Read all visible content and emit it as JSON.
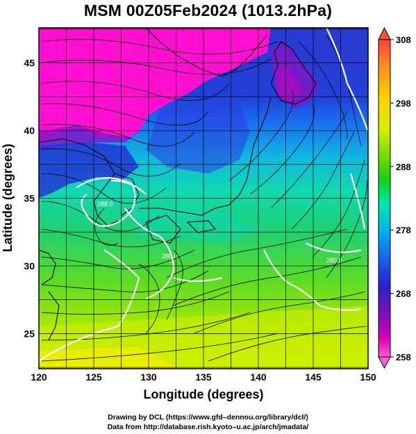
{
  "title": "MSM 00Z05Feb2024 (1013.2hPa)",
  "map": {
    "xlabel": "Longitude (degrees)",
    "ylabel": "Latitude  (degrees)",
    "x_ticks": [
      "120",
      "125",
      "130",
      "135",
      "140",
      "145",
      "150"
    ],
    "y_ticks": [
      "25",
      "30",
      "35",
      "40",
      "45"
    ],
    "lon_range": [
      120,
      150
    ],
    "lat_range": [
      22.4,
      47.6
    ],
    "field": "temperature shading with streamlines",
    "colormap": "rainbow (magenta - blue - cyan - green - yellow - red)",
    "coastlines": true,
    "grid": true
  },
  "colorbar": {
    "ticks": [
      "308",
      "298",
      "288",
      "278",
      "268",
      "258"
    ],
    "range": [
      258,
      308
    ],
    "colors_top_to_bottom": [
      "#ff4040",
      "#ff8a1f",
      "#ffd000",
      "#d7ef00",
      "#7be000",
      "#12d010",
      "#00e6b4",
      "#00b4e6",
      "#1a5af0",
      "#2a20c8",
      "#7a10c0",
      "#d800b0",
      "#ff58d8"
    ]
  },
  "contour_labels": [
    "288.0",
    "280.0",
    "280.0"
  ],
  "credits": {
    "line1": "Drawing by DCL (https://www.gfd–dennou.org/library/dcl/)",
    "line2": "Data from http://database.rish.kyoto–u.ac.jp/arch/jmadata/"
  }
}
